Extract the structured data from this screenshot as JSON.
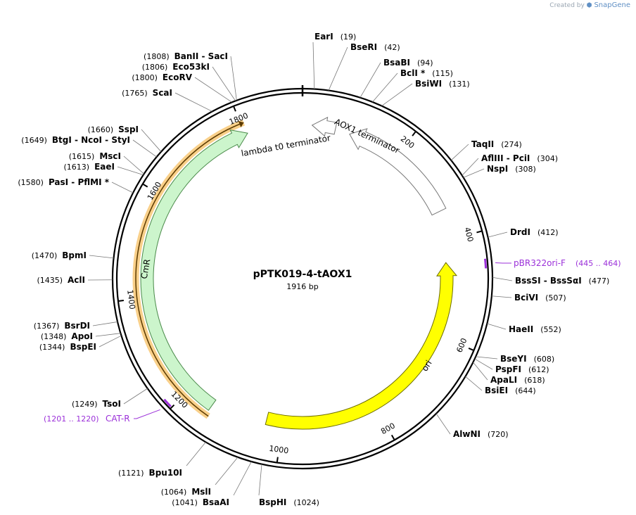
{
  "credit": {
    "prefix": "Created by",
    "brand": "SnapGene"
  },
  "title": "pPTK019-4-tAOX1",
  "length_label": "1916 bp",
  "total_bp": 1916,
  "ring_ticks": [
    {
      "bp": 200,
      "label": "200"
    },
    {
      "bp": 400,
      "label": "400"
    },
    {
      "bp": 600,
      "label": "600"
    },
    {
      "bp": 800,
      "label": "800"
    },
    {
      "bp": 1000,
      "label": "1000"
    },
    {
      "bp": 1200,
      "label": "1200"
    },
    {
      "bp": 1400,
      "label": "1400"
    },
    {
      "bp": 1600,
      "label": "1600"
    },
    {
      "bp": 1800,
      "label": "1800"
    }
  ],
  "features": [
    {
      "name": "AOX1 terminator",
      "start": 96,
      "end": 340,
      "direction": "reverse",
      "color": "#ffffff",
      "stroke": "#777777"
    },
    {
      "name": "lambda t0 terminator",
      "start": 19,
      "end": 66,
      "direction": "reverse",
      "color": "#ffffff",
      "stroke": "#777777",
      "label_pos": "lambda"
    },
    {
      "name": "ori",
      "start": 445,
      "end": 1034,
      "direction": "reverse",
      "color": "#ffff00",
      "stroke": "#6d6d00"
    },
    {
      "name": "CmR",
      "start": 1147,
      "end": 1806,
      "direction": "forward",
      "color": "#ccf5cc",
      "stroke": "#4a8a4a"
    }
  ],
  "orf": {
    "start": 1141,
    "end": 1806,
    "color": "#f5b13c"
  },
  "primers": [
    {
      "name": "pBR322ori-F",
      "range": "(445 .. 464)",
      "bp": 454,
      "side": "right"
    },
    {
      "name": "CAT-R",
      "range": "(1201 .. 1220)",
      "bp": 1210,
      "side": "left"
    }
  ],
  "sites": [
    {
      "name": "EarI",
      "pos": "(19)",
      "bp": 19
    },
    {
      "name": "BseRI",
      "pos": "(42)",
      "bp": 42
    },
    {
      "name": "BsaBI",
      "pos": "(94)",
      "bp": 94
    },
    {
      "name": "BclI *",
      "pos": "(115)",
      "bp": 115
    },
    {
      "name": "BsiWI",
      "pos": "(131)",
      "bp": 131
    },
    {
      "name": "TaqII",
      "pos": "(274)",
      "bp": 274
    },
    {
      "name": "AflIII  - PciI",
      "pos": "(304)",
      "bp": 304
    },
    {
      "name": "NspI",
      "pos": "(308)",
      "bp": 308
    },
    {
      "name": "DrdI",
      "pos": "(412)",
      "bp": 412
    },
    {
      "name": "BssSI  - BssSαI",
      "pos": "(477)",
      "bp": 477
    },
    {
      "name": "BciVI",
      "pos": "(507)",
      "bp": 507
    },
    {
      "name": "HaeII",
      "pos": "(552)",
      "bp": 552
    },
    {
      "name": "BseYI",
      "pos": "(608)",
      "bp": 608
    },
    {
      "name": "PspFI",
      "pos": "(612)",
      "bp": 612
    },
    {
      "name": "ApaLI",
      "pos": "(618)",
      "bp": 618
    },
    {
      "name": "BsiEI",
      "pos": "(644)",
      "bp": 644
    },
    {
      "name": "AlwNI",
      "pos": "(720)",
      "bp": 720
    },
    {
      "name": "BspHI",
      "pos": "(1024)",
      "bp": 1024
    },
    {
      "name": "BsaAI",
      "pos": "(1041)",
      "bp": 1041
    },
    {
      "name": "MslI",
      "pos": "(1064)",
      "bp": 1064
    },
    {
      "name": "Bpu10I",
      "pos": "(1121)",
      "bp": 1121
    },
    {
      "name": "TsoI",
      "pos": "(1249)",
      "bp": 1249
    },
    {
      "name": "BspEI",
      "pos": "(1344)",
      "bp": 1344
    },
    {
      "name": "ApoI",
      "pos": "(1348)",
      "bp": 1348
    },
    {
      "name": "BsrDI",
      "pos": "(1367)",
      "bp": 1367
    },
    {
      "name": "AclI",
      "pos": "(1435)",
      "bp": 1435
    },
    {
      "name": "BpmI",
      "pos": "(1470)",
      "bp": 1470
    },
    {
      "name": "PasI  - PflMI *",
      "pos": "(1580)",
      "bp": 1580
    },
    {
      "name": "EaeI",
      "pos": "(1613)",
      "bp": 1613
    },
    {
      "name": "MscI",
      "pos": "(1615)",
      "bp": 1615
    },
    {
      "name": "BtgI  - NcoI  - StyI",
      "pos": "(1649)",
      "bp": 1649
    },
    {
      "name": "SspI",
      "pos": "(1660)",
      "bp": 1660
    },
    {
      "name": "ScaI",
      "pos": "(1765)",
      "bp": 1765
    },
    {
      "name": "EcoRV",
      "pos": "(1800)",
      "bp": 1800
    },
    {
      "name": "Eco53kI",
      "pos": "(1806)",
      "bp": 1806
    },
    {
      "name": "BanII  - SacI",
      "pos": "(1808)",
      "bp": 1808
    }
  ]
}
